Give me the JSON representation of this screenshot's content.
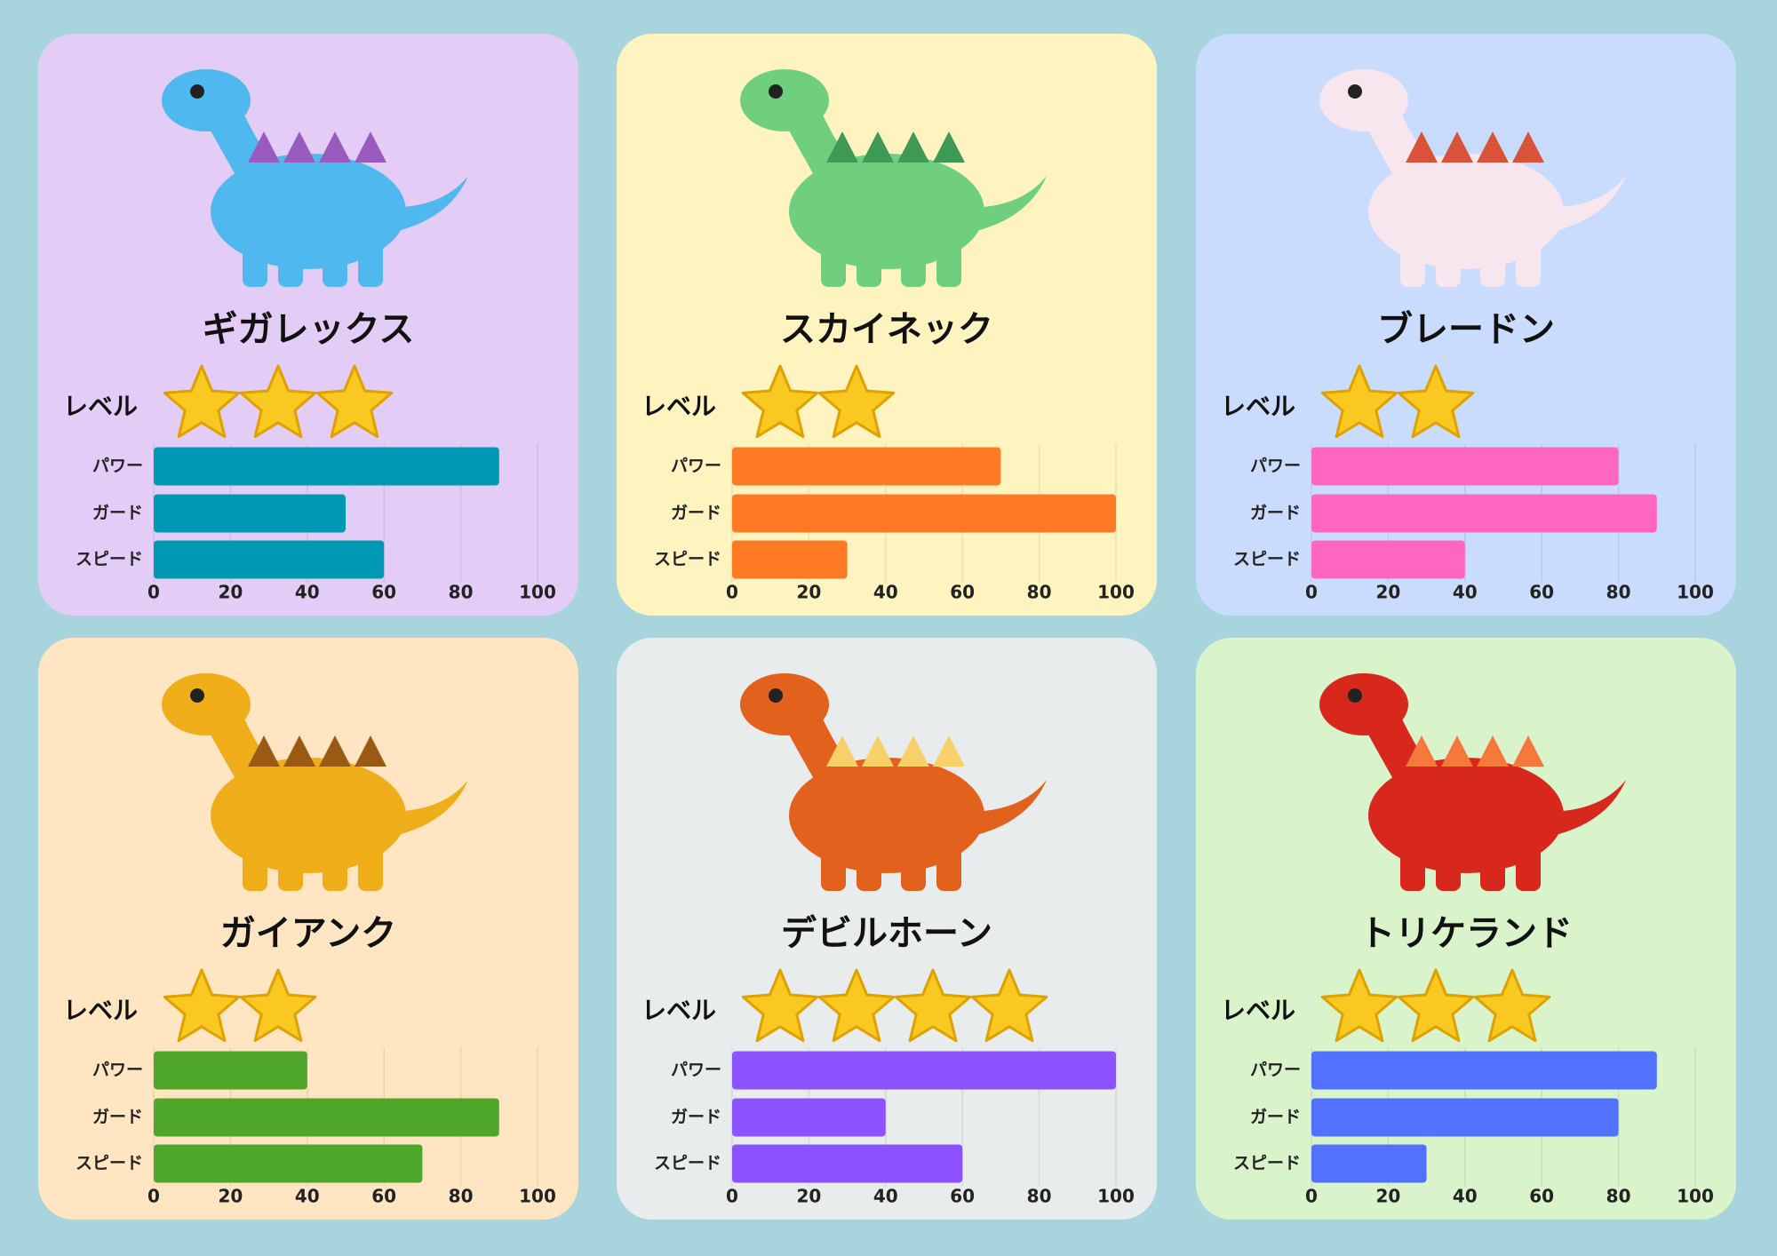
{
  "chart_data": [
    {
      "type": "bar",
      "title": "ギガレックス",
      "level_label": "レベル",
      "level": 3,
      "categories": [
        "パワー",
        "ガード",
        "スピード"
      ],
      "values": [
        90,
        50,
        60
      ],
      "color": "#0099b5",
      "background": "#e3cdf7",
      "xlim": [
        0,
        100
      ],
      "xticks": [
        0,
        20,
        40,
        60,
        80,
        100
      ],
      "grid": true
    },
    {
      "type": "bar",
      "title": "スカイネック",
      "level_label": "レベル",
      "level": 2,
      "categories": [
        "パワー",
        "ガード",
        "スピード"
      ],
      "values": [
        70,
        100,
        30
      ],
      "color": "#ff7a22",
      "background": "#fff3c0",
      "xlim": [
        0,
        100
      ],
      "xticks": [
        0,
        20,
        40,
        60,
        80,
        100
      ],
      "grid": true
    },
    {
      "type": "bar",
      "title": "ブレードン",
      "level_label": "レベル",
      "level": 2,
      "categories": [
        "パワー",
        "ガード",
        "スピード"
      ],
      "values": [
        80,
        90,
        40
      ],
      "color": "#ff66c4",
      "background": "#c9dcfd",
      "xlim": [
        0,
        100
      ],
      "xticks": [
        0,
        20,
        40,
        60,
        80,
        100
      ],
      "grid": true
    },
    {
      "type": "bar",
      "title": "ガイアンク",
      "level_label": "レベル",
      "level": 2,
      "categories": [
        "パワー",
        "ガード",
        "スピード"
      ],
      "values": [
        40,
        90,
        70
      ],
      "color": "#4ea72a",
      "background": "#ffe5c2",
      "xlim": [
        0,
        100
      ],
      "xticks": [
        0,
        20,
        40,
        60,
        80,
        100
      ],
      "grid": true
    },
    {
      "type": "bar",
      "title": "デビルホーン",
      "level_label": "レベル",
      "level": 4,
      "categories": [
        "パワー",
        "ガード",
        "スピード"
      ],
      "values": [
        100,
        40,
        60
      ],
      "color": "#8c52ff",
      "background": "#e8eced",
      "xlim": [
        0,
        100
      ],
      "xticks": [
        0,
        20,
        40,
        60,
        80,
        100
      ],
      "grid": true
    },
    {
      "type": "bar",
      "title": "トリケランド",
      "level_label": "レベル",
      "level": 3,
      "categories": [
        "パワー",
        "ガード",
        "スピード"
      ],
      "values": [
        90,
        80,
        30
      ],
      "color": "#5271ff",
      "background": "#d9f3cb",
      "xlim": [
        0,
        100
      ],
      "xticks": [
        0,
        20,
        40,
        60,
        80,
        100
      ],
      "grid": true
    }
  ]
}
